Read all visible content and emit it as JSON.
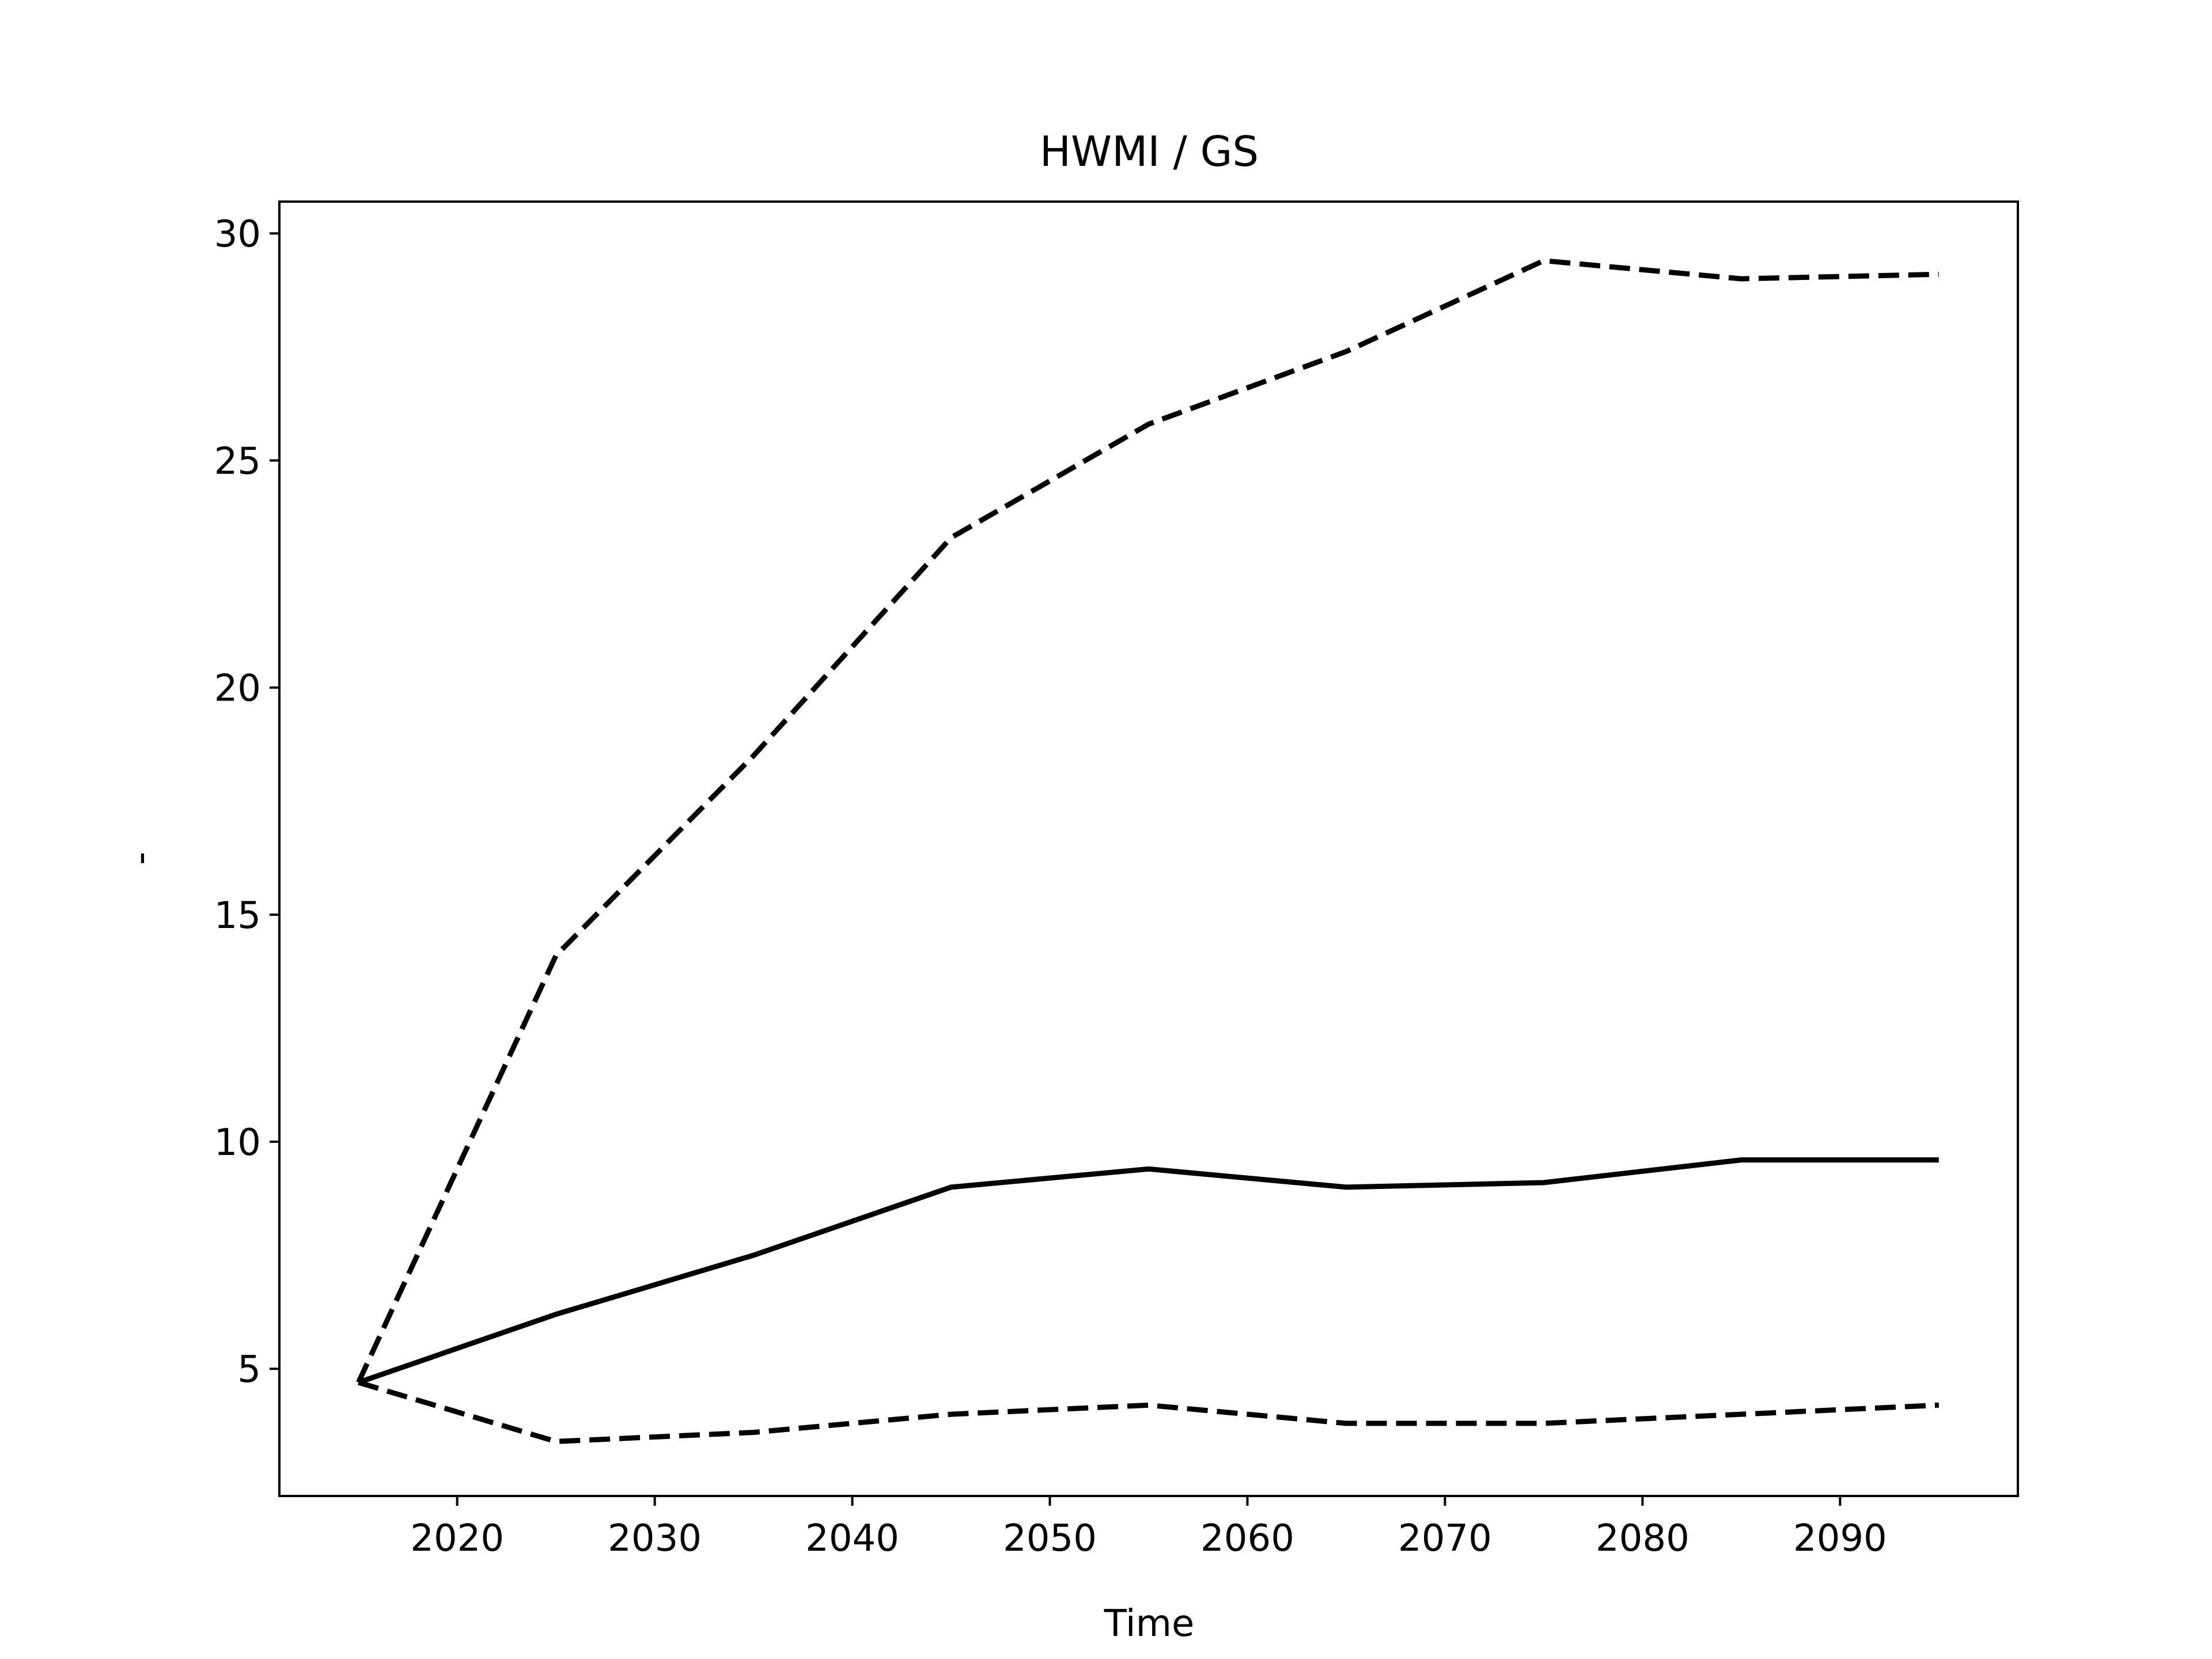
{
  "chart_data": {
    "type": "line",
    "title": "HWMI / GS",
    "xlabel": "Time",
    "ylabel": "-",
    "x": [
      2015,
      2025,
      2035,
      2045,
      2055,
      2065,
      2075,
      2085,
      2095
    ],
    "xlim": [
      2011,
      2099
    ],
    "ylim": [
      2.2,
      30.7
    ],
    "xticks": [
      2020,
      2030,
      2040,
      2050,
      2060,
      2070,
      2080,
      2090
    ],
    "yticks": [
      5,
      10,
      15,
      20,
      25,
      30
    ],
    "grid": false,
    "series": [
      {
        "style": "solid",
        "color": "#000000",
        "values": [
          4.7,
          6.2,
          7.5,
          9.0,
          9.4,
          9.0,
          9.1,
          9.6,
          9.6
        ]
      },
      {
        "style": "dashed",
        "color": "#000000",
        "values": [
          4.7,
          14.1,
          18.5,
          23.3,
          25.8,
          27.4,
          29.4,
          29.0,
          29.1
        ]
      },
      {
        "style": "dashed",
        "color": "#000000",
        "values": [
          4.7,
          3.4,
          3.6,
          4.0,
          4.2,
          3.8,
          3.8,
          4.0,
          4.2
        ]
      }
    ]
  }
}
